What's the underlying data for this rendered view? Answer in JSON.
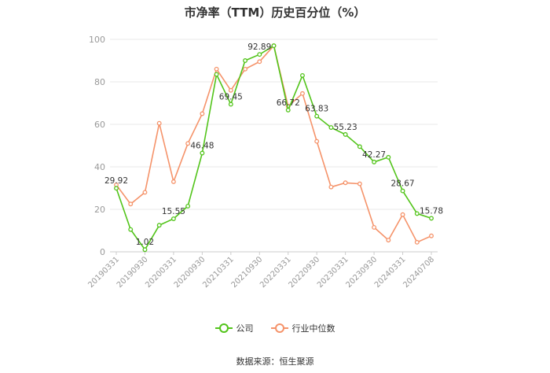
{
  "title": "市净率（TTM）历史百分位（%）",
  "source": "数据来源：恒生聚源",
  "colors": {
    "company": "#52c41a",
    "industry": "#f5936a",
    "grid": "#e8e8e8",
    "axis": "#999999"
  },
  "chart_data": {
    "type": "line",
    "title": "市净率（TTM）历史百分位（%）",
    "ylim": [
      0,
      100
    ],
    "yticks": [
      0,
      20,
      40,
      60,
      80,
      100
    ],
    "xlabels": [
      "20190331",
      "20190930",
      "20200331",
      "20200930",
      "20210331",
      "20210930",
      "20220331",
      "20220930",
      "20230331",
      "20230930",
      "20240331",
      "20240708"
    ],
    "xlabel_positions": [
      0,
      2,
      4,
      6,
      8,
      10,
      12,
      14,
      16,
      18,
      20,
      22
    ],
    "grid": true,
    "legend_position": "bottom",
    "series": [
      {
        "name": "公司",
        "color": "#52c41a",
        "values": [
          29.92,
          10.5,
          1.02,
          12.5,
          15.55,
          21.5,
          46.48,
          83.5,
          69.45,
          90.0,
          92.89,
          97.0,
          66.72,
          83.0,
          63.83,
          58.5,
          55.23,
          49.5,
          42.27,
          44.5,
          28.67,
          18.0,
          15.78
        ]
      },
      {
        "name": "行业中位数",
        "color": "#f5936a",
        "values": [
          31.5,
          22.5,
          28.0,
          60.5,
          33.0,
          51.0,
          65.0,
          86.0,
          76.0,
          86.0,
          89.5,
          97.0,
          68.5,
          74.5,
          52.0,
          30.5,
          32.5,
          32.0,
          11.5,
          5.5,
          17.5,
          4.5,
          7.5
        ]
      }
    ],
    "data_labels": [
      {
        "series": 0,
        "index": 0,
        "text": "29.92"
      },
      {
        "series": 0,
        "index": 2,
        "text": "1.02"
      },
      {
        "series": 0,
        "index": 4,
        "text": "15.55"
      },
      {
        "series": 0,
        "index": 6,
        "text": "46.48"
      },
      {
        "series": 0,
        "index": 8,
        "text": "69.45"
      },
      {
        "series": 0,
        "index": 10,
        "text": "92.89"
      },
      {
        "series": 0,
        "index": 12,
        "text": "66.72"
      },
      {
        "series": 0,
        "index": 14,
        "text": "63.83"
      },
      {
        "series": 0,
        "index": 16,
        "text": "55.23"
      },
      {
        "series": 0,
        "index": 18,
        "text": "42.27"
      },
      {
        "series": 0,
        "index": 20,
        "text": "28.67"
      },
      {
        "series": 0,
        "index": 22,
        "text": "15.78"
      }
    ]
  }
}
